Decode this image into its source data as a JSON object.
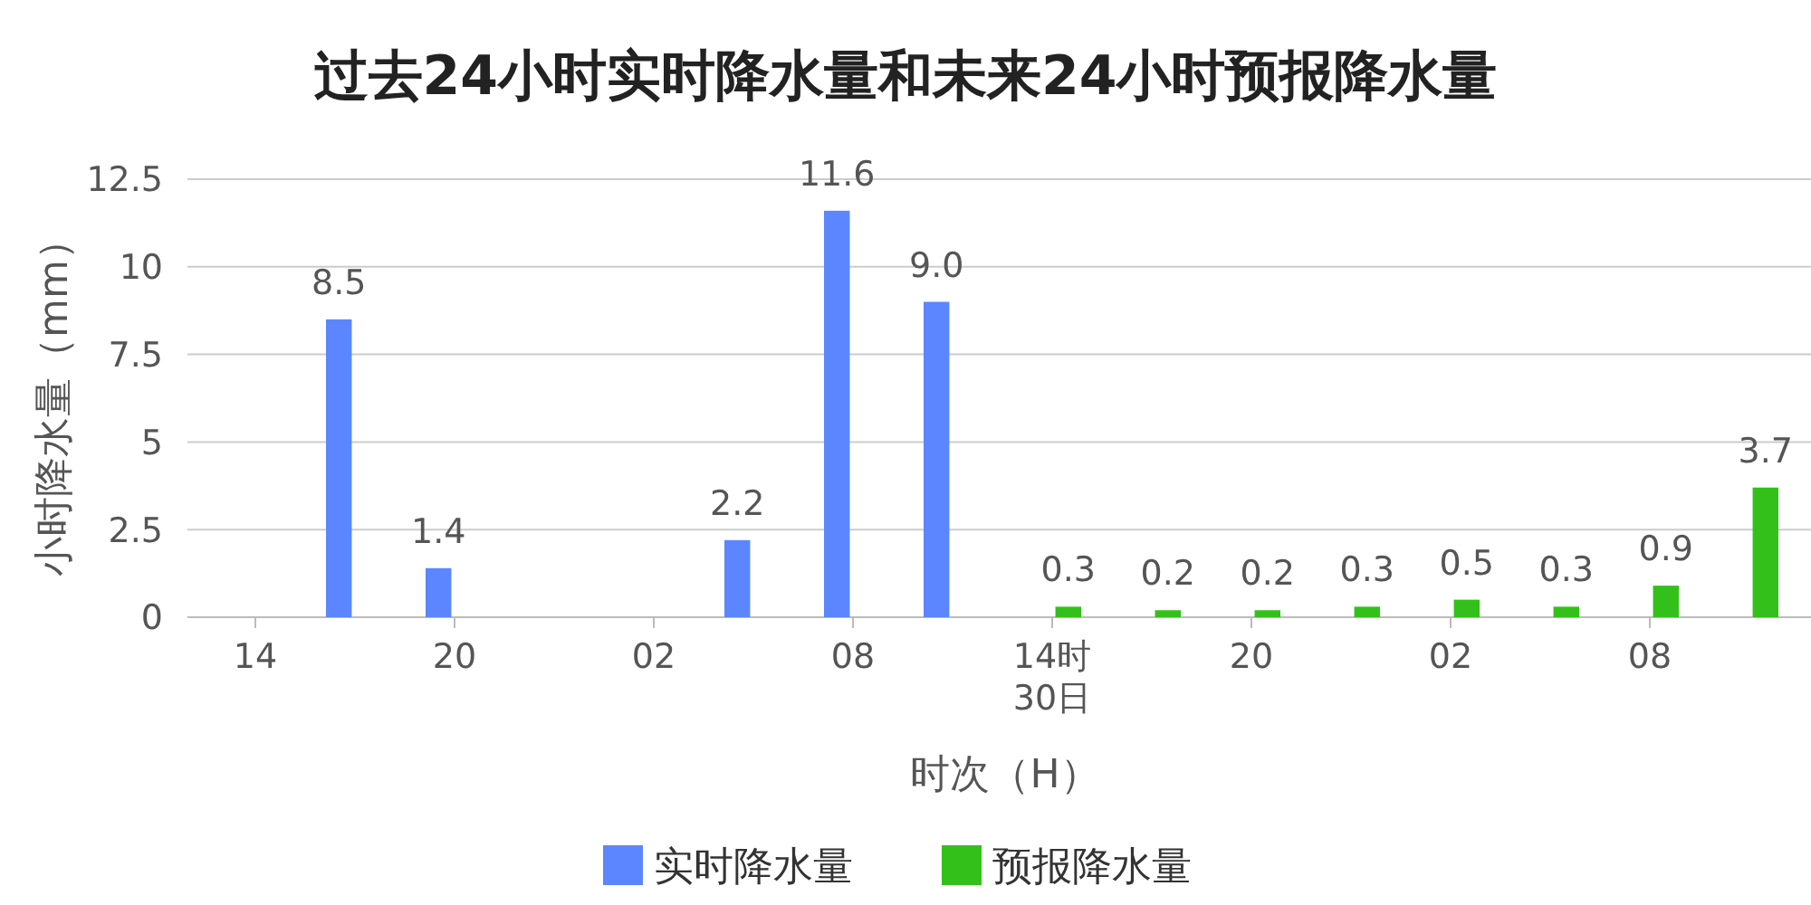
{
  "chart_data": {
    "type": "bar",
    "title": "过去24小时实时降水量和未来24小时预报降水量",
    "xlabel": "时次（H）",
    "ylabel": "小时降水量（mm）",
    "categories": [
      "14",
      null,
      "20",
      null,
      "02",
      null,
      "08",
      null,
      "14时\n30日",
      null,
      "20",
      null,
      "02",
      null,
      "08",
      null
    ],
    "series": [
      {
        "name": "实时降水量",
        "color": "#5b86ff",
        "values": [
          null,
          8.5,
          1.4,
          null,
          null,
          2.2,
          11.6,
          9.0,
          null,
          null,
          null,
          null,
          null,
          null,
          null,
          null
        ],
        "value_labels": [
          null,
          "8.5",
          "1.4",
          null,
          null,
          "2.2",
          "11.6",
          "9.0",
          null,
          null,
          null,
          null,
          null,
          null,
          null,
          null
        ]
      },
      {
        "name": "预报降水量",
        "color": "#33c01b",
        "values": [
          null,
          null,
          null,
          null,
          null,
          null,
          null,
          null,
          0.3,
          0.2,
          0.2,
          0.3,
          0.5,
          0.3,
          0.9,
          3.7
        ],
        "value_labels": [
          null,
          null,
          null,
          null,
          null,
          null,
          null,
          null,
          "0.3",
          "0.2",
          "0.2",
          "0.3",
          "0.5",
          "0.3",
          "0.9",
          "3.7"
        ]
      }
    ],
    "ylim": [
      0,
      12.5
    ],
    "yticks": [
      0,
      2.5,
      5,
      7.5,
      10,
      12.5
    ],
    "grid": "y",
    "legend": "bottom"
  }
}
